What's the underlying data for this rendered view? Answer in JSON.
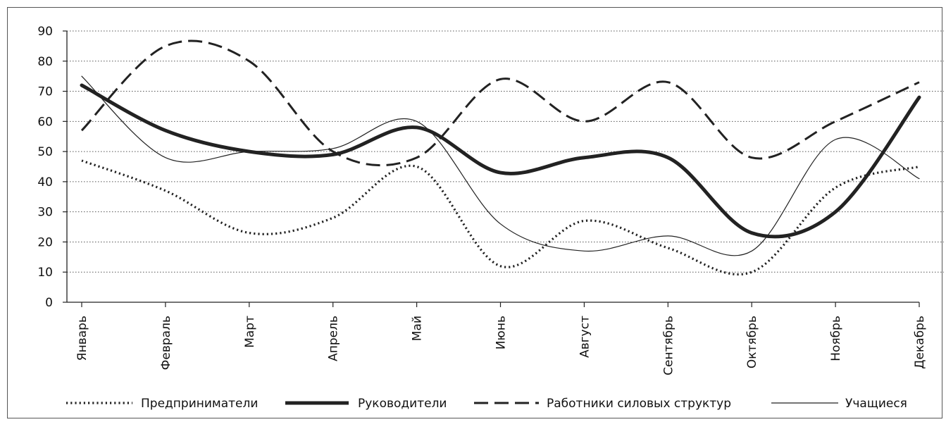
{
  "chart_data": {
    "type": "line",
    "title": "",
    "xlabel": "",
    "ylabel": "",
    "categories": [
      "Январь",
      "Февраль",
      "Март",
      "Апрель",
      "Май",
      "Июнь",
      "Август",
      "Сентябрь",
      "Октябрь",
      "Ноябрь",
      "Декабрь"
    ],
    "ylim": [
      0,
      90
    ],
    "yticks": [
      0,
      10,
      20,
      30,
      40,
      50,
      60,
      70,
      80,
      90
    ],
    "grid": "horizontal dotted",
    "legend_position": "bottom",
    "series": [
      {
        "name": "Предприниматели",
        "style": "dotted",
        "color": "#222222",
        "values": [
          47,
          37,
          23,
          28,
          45,
          12,
          27,
          18,
          10,
          38,
          45
        ]
      },
      {
        "name": "Руководители",
        "style": "thick",
        "color": "#222222",
        "values": [
          72,
          57,
          50,
          49,
          58,
          43,
          48,
          48,
          23,
          30,
          68
        ]
      },
      {
        "name": "Работники силовых структур",
        "style": "dashed",
        "color": "#222222",
        "values": [
          57,
          85,
          80,
          50,
          48,
          74,
          60,
          73,
          48,
          60,
          73
        ]
      },
      {
        "name": "Учащиеся",
        "style": "thin",
        "color": "#222222",
        "values": [
          75,
          48,
          50,
          51,
          60,
          26,
          17,
          22,
          17,
          54,
          41
        ]
      }
    ]
  }
}
